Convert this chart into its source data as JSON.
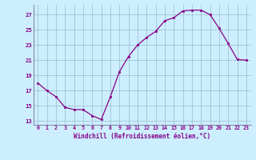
{
  "x": [
    0,
    1,
    2,
    3,
    4,
    5,
    6,
    7,
    8,
    9,
    10,
    11,
    12,
    13,
    14,
    15,
    16,
    17,
    18,
    19,
    20,
    21,
    22,
    23
  ],
  "y": [
    18,
    17,
    16.2,
    14.8,
    14.5,
    14.5,
    13.7,
    13.2,
    16.2,
    19.5,
    21.5,
    23,
    24,
    24.8,
    26.2,
    26.6,
    27.5,
    27.6,
    27.6,
    27,
    25.2,
    23.2,
    21.1,
    21.0
  ],
  "xlabel": "Windchill (Refroidissement éolien,°C)",
  "xlim": [
    -0.5,
    23.5
  ],
  "ylim": [
    12.5,
    28.3
  ],
  "yticks": [
    13,
    15,
    17,
    19,
    21,
    23,
    25,
    27
  ],
  "xticks": [
    0,
    1,
    2,
    3,
    4,
    5,
    6,
    7,
    8,
    9,
    10,
    11,
    12,
    13,
    14,
    15,
    16,
    17,
    18,
    19,
    20,
    21,
    22,
    23
  ],
  "line_color": "#880088",
  "bg_color": "#cceeff",
  "grid_color": "#99bbcc",
  "label_color": "#880088",
  "tick_color": "#880088",
  "spine_color": "#8888aa"
}
